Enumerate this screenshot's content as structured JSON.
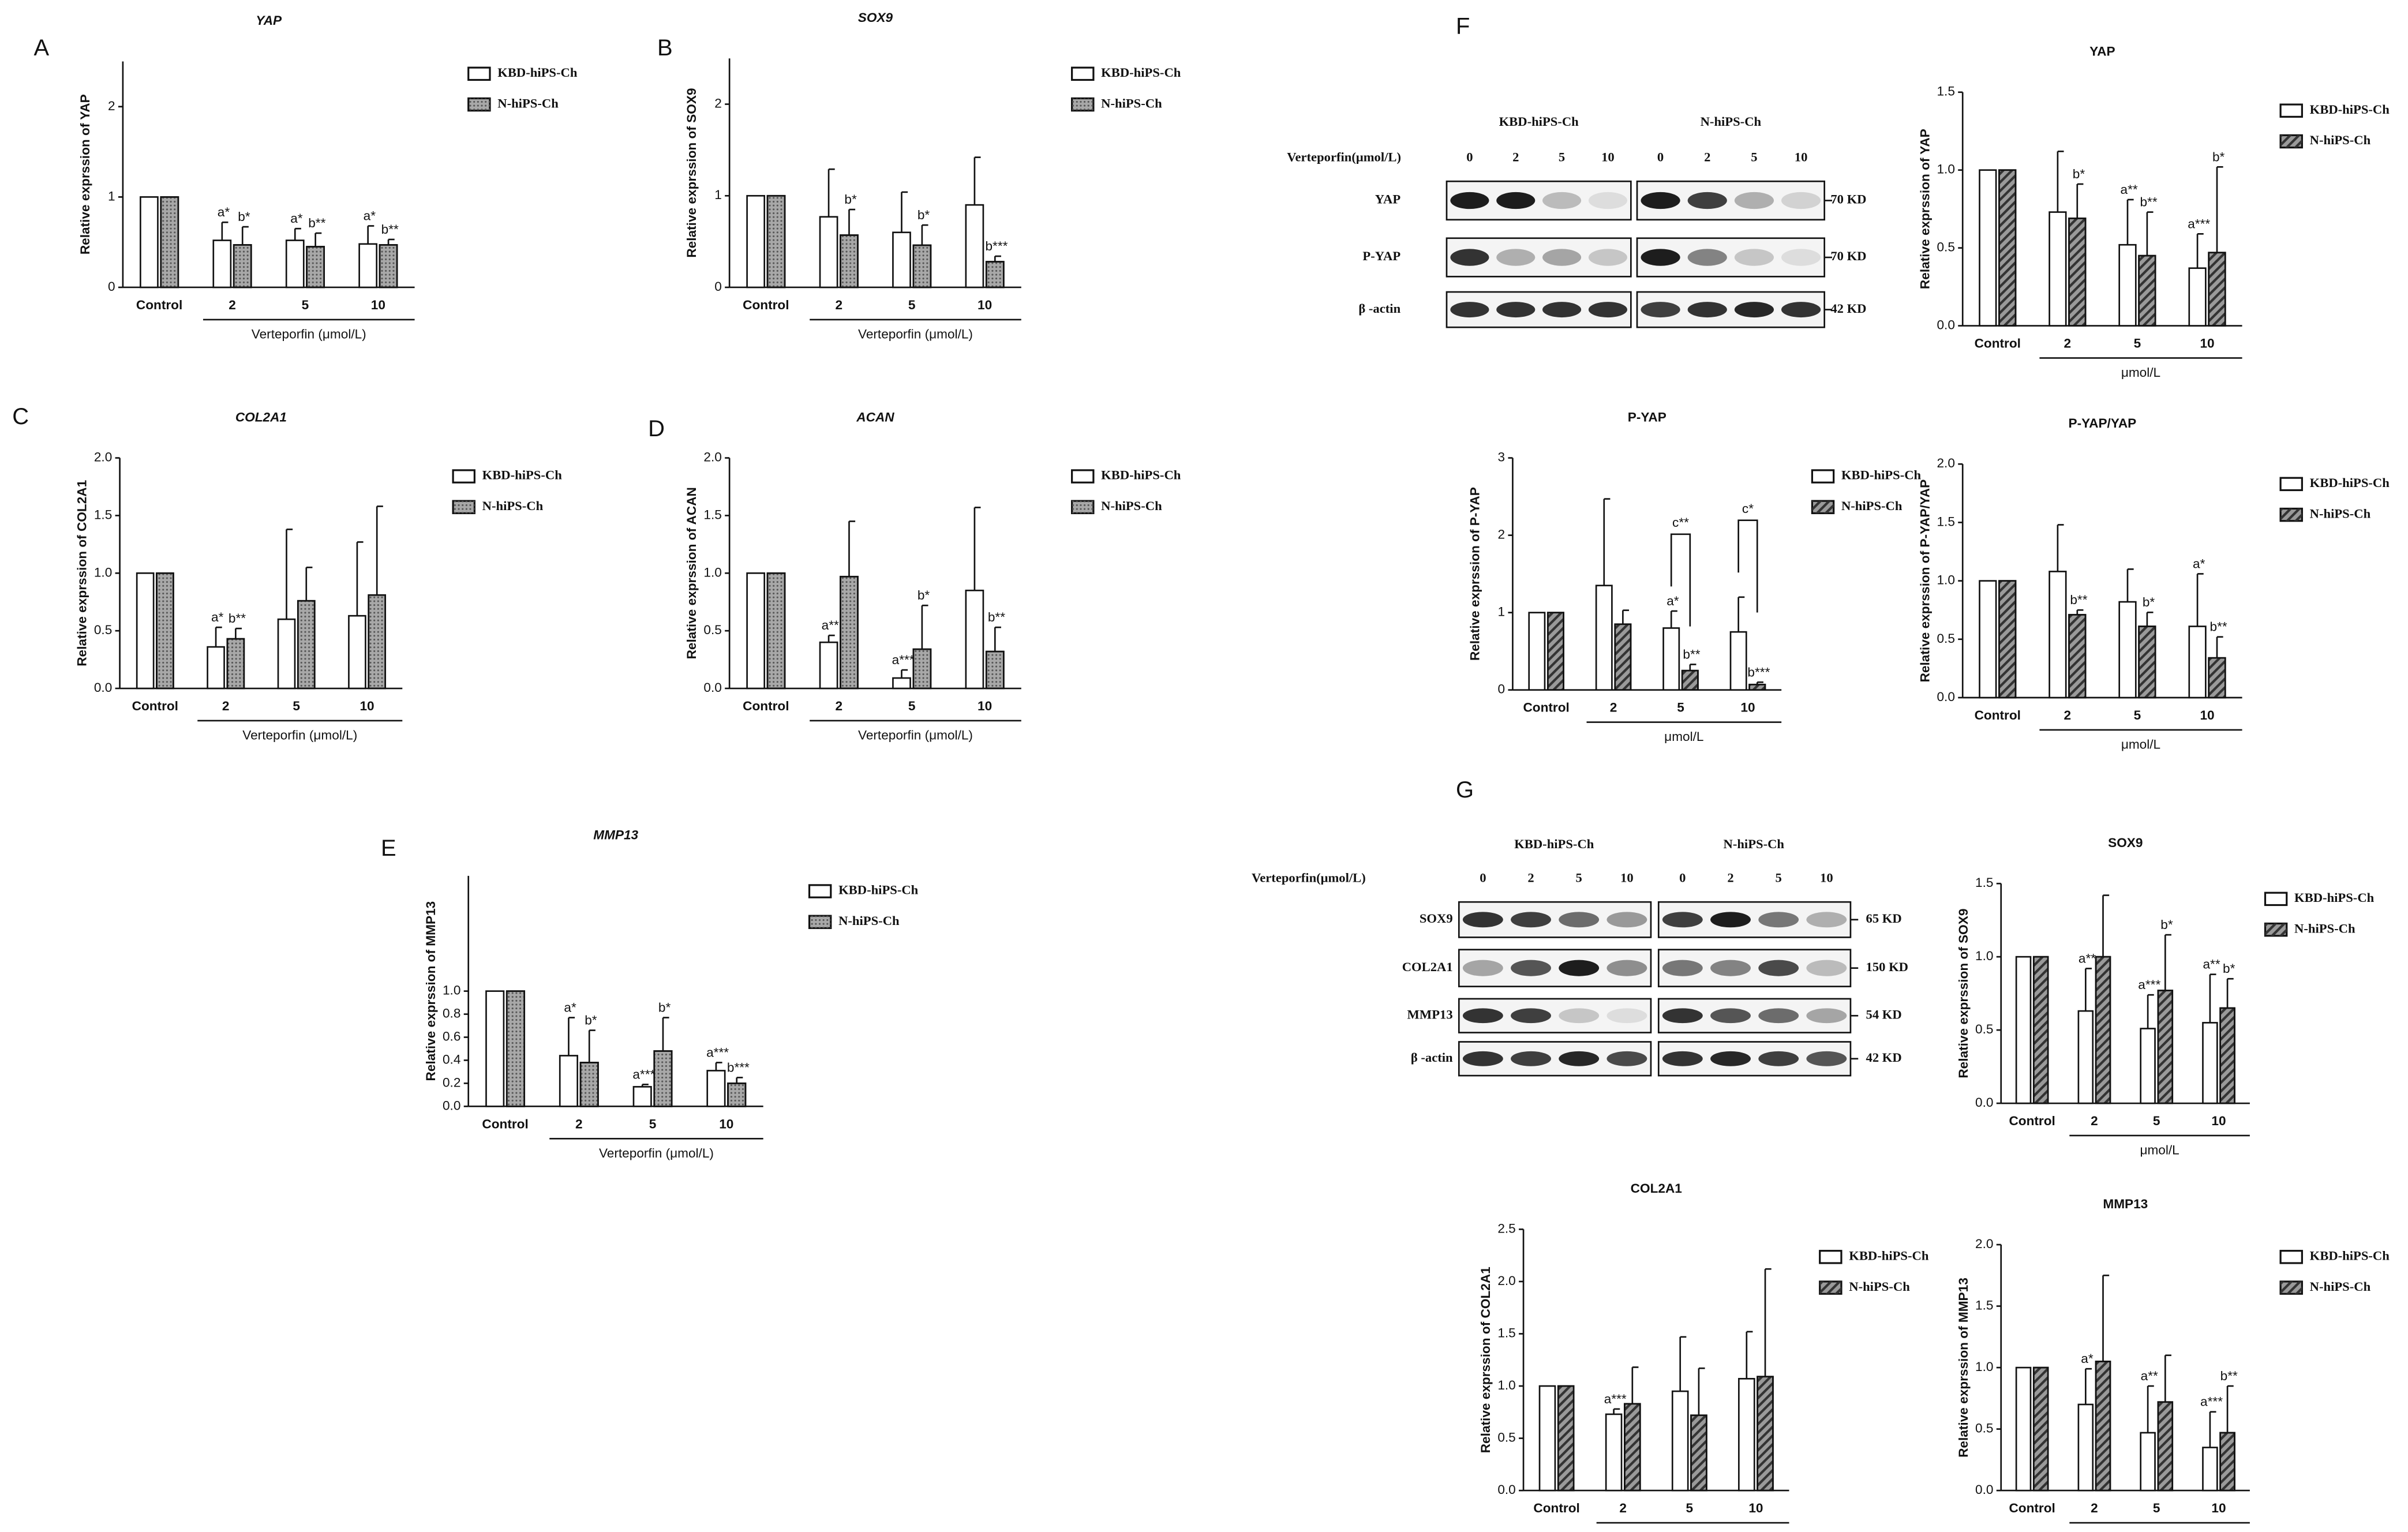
{
  "chart_data": [
    {
      "type": "bar",
      "panel": "A",
      "title": "YAP",
      "ylabel": "Relative exprssion of YAP",
      "categories": [
        "Control",
        "2",
        "5",
        "10"
      ],
      "group_label": "Verteporfin (μmol/L)",
      "ylim": [
        0,
        2.5
      ],
      "yticks": [
        0,
        1,
        2
      ],
      "series": [
        {
          "name": "KBD-hiPS-Ch",
          "color": "#ffffff",
          "values": [
            1,
            0.52,
            0.52,
            0.48
          ],
          "errors": [
            null,
            0.2,
            0.13,
            0.2
          ],
          "labels": [
            null,
            "a*",
            "a*",
            "a*"
          ]
        },
        {
          "name": "N-hiPS-Ch",
          "color": "#a8a8a8",
          "pattern": "dots",
          "values": [
            1,
            0.47,
            0.45,
            0.47
          ],
          "errors": [
            null,
            0.2,
            0.15,
            0.06
          ],
          "labels": [
            null,
            "b*",
            "b**",
            "b**"
          ]
        }
      ]
    },
    {
      "type": "bar",
      "panel": "B",
      "title": "SOX9",
      "ylabel": "Relative exprssion of SOX9",
      "categories": [
        "Control",
        "2",
        "5",
        "10"
      ],
      "group_label": "Verteporfin (μmol/L)",
      "ylim": [
        0,
        2.5
      ],
      "yticks": [
        0,
        1,
        2
      ],
      "series": [
        {
          "name": "KBD-hiPS-Ch",
          "color": "#ffffff",
          "values": [
            1,
            0.77,
            0.6,
            0.9
          ],
          "errors": [
            null,
            0.52,
            0.44,
            0.52
          ],
          "labels": [
            null,
            null,
            null,
            null
          ]
        },
        {
          "name": "N-hiPS-Ch",
          "color": "#a8a8a8",
          "pattern": "dots",
          "values": [
            1,
            0.57,
            0.46,
            0.28
          ],
          "errors": [
            null,
            0.28,
            0.22,
            0.06
          ],
          "labels": [
            null,
            "b*",
            "b*",
            "b***"
          ]
        }
      ]
    },
    {
      "type": "bar",
      "panel": "C",
      "title": "COL2A1",
      "ylabel": "Relative exprssion of COL2A1",
      "categories": [
        "Control",
        "2",
        "5",
        "10"
      ],
      "group_label": "Verteporfin (μmol/L)",
      "ylim": [
        0,
        2
      ],
      "yticks": [
        {
          "value": 0,
          "label": "0.0"
        },
        0.5,
        {
          "value": 1,
          "label": "1.0"
        },
        1.5,
        {
          "value": 2,
          "label": "2.0"
        }
      ],
      "series": [
        {
          "name": "KBD-hiPS-Ch",
          "color": "#ffffff",
          "values": [
            1,
            0.36,
            0.6,
            0.63
          ],
          "errors": [
            null,
            0.17,
            0.78,
            0.64
          ],
          "labels": [
            null,
            "a*",
            null,
            null
          ]
        },
        {
          "name": "N-hiPS-Ch",
          "color": "#a8a8a8",
          "pattern": "dots",
          "values": [
            1,
            0.43,
            0.76,
            0.81
          ],
          "errors": [
            null,
            0.09,
            0.29,
            0.77
          ],
          "labels": [
            null,
            "b**",
            null,
            null
          ]
        }
      ]
    },
    {
      "type": "bar",
      "panel": "D",
      "title": "ACAN",
      "ylabel": "Relative exprssion of ACAN",
      "categories": [
        "Control",
        "2",
        "5",
        "10"
      ],
      "group_label": "Verteporfin (μmol/L)",
      "ylim": [
        0,
        2
      ],
      "yticks": [
        {
          "value": 0,
          "label": "0.0"
        },
        0.5,
        {
          "value": 1,
          "label": "1.0"
        },
        1.5,
        {
          "value": 2,
          "label": "2.0"
        }
      ],
      "series": [
        {
          "name": "KBD-hiPS-Ch",
          "color": "#ffffff",
          "values": [
            1,
            0.4,
            0.09,
            0.85
          ],
          "errors": [
            null,
            0.06,
            0.07,
            0.72
          ],
          "labels": [
            null,
            "a**",
            "a***",
            null
          ]
        },
        {
          "name": "N-hiPS-Ch",
          "color": "#a8a8a8",
          "pattern": "dots",
          "values": [
            1,
            0.97,
            0.34,
            0.32
          ],
          "errors": [
            null,
            0.48,
            0.38,
            0.21
          ],
          "labels": [
            null,
            null,
            "b*",
            "b**"
          ]
        }
      ]
    },
    {
      "type": "bar",
      "panel": "E",
      "title": "MMP13",
      "ylabel": "Relative exprssion of MMP13",
      "categories": [
        "Control",
        "2",
        "5",
        "10"
      ],
      "group_label": "Verteporfin (μmol/L)",
      "ylim": [
        0,
        2
      ],
      "yticks": [
        {
          "value": 0,
          "label": "0.0"
        },
        0.2,
        0.4,
        0.6,
        0.8,
        {
          "value": 1,
          "label": "1.0"
        }
      ],
      "series": [
        {
          "name": "KBD-hiPS-Ch",
          "color": "#ffffff",
          "values": [
            1,
            0.44,
            0.17,
            0.31
          ],
          "errors": [
            null,
            0.33,
            0.02,
            0.07
          ],
          "labels": [
            null,
            "a*",
            "a***",
            "a***"
          ]
        },
        {
          "name": "N-hiPS-Ch",
          "color": "#a8a8a8",
          "pattern": "dots",
          "values": [
            1,
            0.38,
            0.48,
            0.2
          ],
          "errors": [
            null,
            0.28,
            0.29,
            0.05
          ],
          "labels": [
            null,
            "b*",
            "b*",
            "b***"
          ]
        }
      ]
    },
    {
      "type": "bar",
      "title": "YAP",
      "ylabel": "Relative exprssion of YAP",
      "categories": [
        "Control",
        "2",
        "5",
        "10"
      ],
      "group_label": "μmol/L",
      "ylim": [
        0,
        1.5
      ],
      "yticks": [
        {
          "value": 0,
          "label": "0.0"
        },
        0.5,
        {
          "value": 1,
          "label": "1.0"
        },
        1.5
      ],
      "series": [
        {
          "name": "KBD-hiPS-Ch",
          "color": "#ffffff",
          "values": [
            1,
            0.73,
            0.52,
            0.37
          ],
          "errors": [
            null,
            0.39,
            0.29,
            0.22
          ],
          "labels": [
            null,
            null,
            "a**",
            "a***"
          ]
        },
        {
          "name": "N-hiPS-Ch",
          "color": "#9a9a9a",
          "pattern": "stripes",
          "values": [
            1,
            0.69,
            0.45,
            0.47
          ],
          "errors": [
            null,
            0.22,
            0.28,
            0.55
          ],
          "labels": [
            null,
            "b*",
            "b**",
            "b*"
          ]
        }
      ]
    },
    {
      "type": "bar",
      "title": "P-YAP",
      "ylabel": "Relative exprssion of P-YAP",
      "categories": [
        "Control",
        "2",
        "5",
        "10"
      ],
      "group_label": "μmol/L",
      "ylim": [
        0,
        3
      ],
      "yticks": [
        0,
        1,
        2,
        3
      ],
      "comparison_labels": [
        null,
        null,
        "c**",
        "c*"
      ],
      "series": [
        {
          "name": "KBD-hiPS-Ch",
          "color": "#ffffff",
          "values": [
            1,
            1.35,
            0.8,
            0.75
          ],
          "errors": [
            null,
            1.12,
            0.22,
            0.45
          ],
          "labels": [
            null,
            null,
            "a*",
            null
          ]
        },
        {
          "name": "N-hiPS-Ch",
          "color": "#9a9a9a",
          "pattern": "stripes",
          "values": [
            1,
            0.85,
            0.25,
            0.07
          ],
          "errors": [
            null,
            0.18,
            0.08,
            0.03
          ],
          "labels": [
            null,
            null,
            "b**",
            "b***"
          ]
        }
      ]
    },
    {
      "type": "bar",
      "title": "P-YAP/YAP",
      "ylabel": "Relative exprssion of P-YAP/YAP",
      "categories": [
        "Control",
        "2",
        "5",
        "10"
      ],
      "group_label": "μmol/L",
      "ylim": [
        0,
        2
      ],
      "yticks": [
        {
          "value": 0,
          "label": "0.0"
        },
        0.5,
        {
          "value": 1,
          "label": "1.0"
        },
        1.5,
        {
          "value": 2,
          "label": "2.0"
        }
      ],
      "series": [
        {
          "name": "KBD-hiPS-Ch",
          "color": "#ffffff",
          "values": [
            1,
            1.08,
            0.82,
            0.61
          ],
          "errors": [
            null,
            0.4,
            0.28,
            0.45
          ],
          "labels": [
            null,
            null,
            null,
            "a*"
          ]
        },
        {
          "name": "N-hiPS-Ch",
          "color": "#9a9a9a",
          "pattern": "stripes",
          "values": [
            1,
            0.71,
            0.61,
            0.34
          ],
          "errors": [
            null,
            0.04,
            0.12,
            0.18
          ],
          "labels": [
            null,
            "b**",
            "b*",
            "b**"
          ]
        }
      ]
    },
    {
      "type": "bar",
      "title": "SOX9",
      "ylabel": "Relative exprssion of SOX9",
      "categories": [
        "Control",
        "2",
        "5",
        "10"
      ],
      "group_label": "μmol/L",
      "ylim": [
        0,
        1.5
      ],
      "yticks": [
        {
          "value": 0,
          "label": "0.0"
        },
        0.5,
        {
          "value": 1,
          "label": "1.0"
        },
        1.5
      ],
      "series": [
        {
          "name": "KBD-hiPS-Ch",
          "color": "#ffffff",
          "values": [
            1,
            0.63,
            0.51,
            0.55
          ],
          "errors": [
            null,
            0.29,
            0.23,
            0.33
          ],
          "labels": [
            null,
            "a**",
            "a***",
            "a**"
          ]
        },
        {
          "name": "N-hiPS-Ch",
          "color": "#9a9a9a",
          "pattern": "stripes",
          "values": [
            1,
            1.0,
            0.77,
            0.65
          ],
          "errors": [
            null,
            0.42,
            0.38,
            0.2
          ],
          "labels": [
            null,
            null,
            "b*",
            "b*"
          ]
        }
      ]
    },
    {
      "type": "bar",
      "title": "COL2A1",
      "ylabel": "Relative exprssion of COL2A1",
      "categories": [
        "Control",
        "2",
        "5",
        "10"
      ],
      "group_label": "μmol/L",
      "ylim": [
        0,
        2.5
      ],
      "yticks": [
        {
          "value": 0,
          "label": "0.0"
        },
        0.5,
        {
          "value": 1,
          "label": "1.0"
        },
        1.5,
        {
          "value": 2,
          "label": "2.0"
        },
        2.5
      ],
      "series": [
        {
          "name": "KBD-hiPS-Ch",
          "color": "#ffffff",
          "values": [
            1,
            0.73,
            0.95,
            1.07
          ],
          "errors": [
            null,
            0.05,
            0.52,
            0.45
          ],
          "labels": [
            null,
            "a***",
            null,
            null
          ]
        },
        {
          "name": "N-hiPS-Ch",
          "color": "#9a9a9a",
          "pattern": "stripes",
          "values": [
            1,
            0.83,
            0.72,
            1.09
          ],
          "errors": [
            null,
            0.35,
            0.45,
            1.03
          ],
          "labels": [
            null,
            null,
            null,
            null
          ]
        }
      ]
    },
    {
      "type": "bar",
      "title": "MMP13",
      "ylabel": "Relative exprssion of MMP13",
      "categories": [
        "Control",
        "2",
        "5",
        "10"
      ],
      "group_label": "μmol/L",
      "ylim": [
        0,
        2
      ],
      "yticks": [
        {
          "value": 0,
          "label": "0.0"
        },
        0.5,
        {
          "value": 1,
          "label": "1.0"
        },
        1.5,
        {
          "value": 2,
          "label": "2.0"
        }
      ],
      "series": [
        {
          "name": "KBD-hiPS-Ch",
          "color": "#ffffff",
          "values": [
            1,
            0.7,
            0.47,
            0.35
          ],
          "errors": [
            null,
            0.29,
            0.38,
            0.29
          ],
          "labels": [
            null,
            "a*",
            "a**",
            "a***"
          ]
        },
        {
          "name": "N-hiPS-Ch",
          "color": "#9a9a9a",
          "pattern": "stripes",
          "values": [
            1,
            1.05,
            0.72,
            0.47
          ],
          "errors": [
            null,
            0.7,
            0.38,
            0.38
          ],
          "labels": [
            null,
            null,
            null,
            "b**"
          ]
        }
      ]
    }
  ],
  "blots": [
    {
      "panel": "F",
      "groups": [
        "KBD-hiPS-Ch",
        "N-hiPS-Ch"
      ],
      "treatment": "Verteporfin(μmol/L)",
      "lanes": [
        "0",
        "2",
        "5",
        "10"
      ],
      "rows": [
        {
          "label": "YAP",
          "size": "70 KD"
        },
        {
          "label": "P-YAP",
          "size": "70 KD"
        },
        {
          "label": "β -actin",
          "size": "42 KD"
        }
      ]
    },
    {
      "panel": "G",
      "groups": [
        "KBD-hiPS-Ch",
        "N-hiPS-Ch"
      ],
      "treatment": "Verteporfin(μmol/L)",
      "lanes": [
        "0",
        "2",
        "5",
        "10"
      ],
      "rows": [
        {
          "label": "SOX9",
          "size": "65 KD"
        },
        {
          "label": "COL2A1",
          "size": "150 KD"
        },
        {
          "label": "MMP13",
          "size": "54 KD"
        },
        {
          "label": "β -actin",
          "size": "42 KD"
        }
      ]
    }
  ]
}
